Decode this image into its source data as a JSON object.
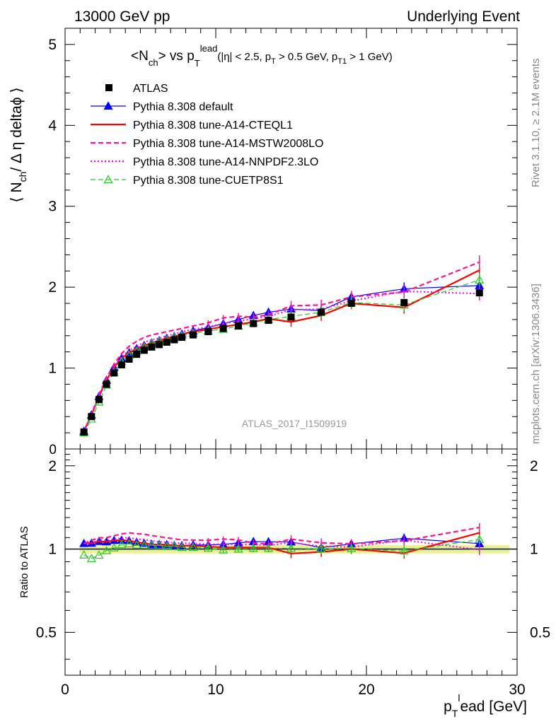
{
  "header": {
    "left": "13000 GeV pp",
    "right": "Underlying Event"
  },
  "side_labels": {
    "rivet": "Rivet 3.1.10, ≥ 2.1M events",
    "mcplots": "mcplots.cern.ch [arXiv:1306.3436]"
  },
  "watermark": "ATLAS_2017_I1509919",
  "colors": {
    "atlas": "#000000",
    "default": "#0000ff",
    "a14cteq": "#ff0000",
    "a14mstw": "#ff1493",
    "a14nnpdf": "#ff00ff",
    "cuetp8s1": "#22cc22",
    "band_outer": "#f2f28a",
    "band_inner": "#d8f0a0"
  },
  "chart_data": {
    "type": "line",
    "title": "<N_ch> vs p_T^lead (|η| < 2.5, p_T > 0.5 GeV, p_T1 > 1 GeV)",
    "title_parts": {
      "main": "<N",
      "sub1": "ch",
      "mid": "> vs p",
      "sub2": "T",
      "sup": "lead",
      "cut_a": "(|η| < 2.5, p",
      "cut_sub_a": "T",
      "cut_b": " > 0.5 GeV, p",
      "cut_sub_b": "T1",
      "cut_c": " > 1 GeV)"
    },
    "ylabel": "⟨ N_ch / Δη deltaϕ ⟩",
    "ylabel_parts": {
      "a": "⟨ N",
      "sub": "ch",
      "b": "/ Δ η deltaϕ ⟩"
    },
    "xlabel": "p_T^l ead [GeV]",
    "xlabel_parts": {
      "a": "p",
      "sub": "T",
      "sup": "l",
      "b": "ead [GeV]"
    },
    "ratio_ylabel": "Ratio to ATLAS",
    "xlim": [
      0,
      30
    ],
    "ylim": [
      0,
      5.2
    ],
    "ratio_ylim": [
      0.35,
      2.3
    ],
    "x_ticks": [
      "0",
      "10",
      "20",
      "30"
    ],
    "y_ticks": [
      "1",
      "2",
      "3",
      "4",
      "5"
    ],
    "ratio_ticks": [
      "0.5",
      "1",
      "2"
    ],
    "x": [
      1.25,
      1.75,
      2.25,
      2.75,
      3.25,
      3.75,
      4.25,
      4.75,
      5.25,
      5.75,
      6.25,
      6.75,
      7.25,
      7.75,
      8.5,
      9.5,
      10.5,
      11.5,
      12.5,
      13.5,
      15.0,
      17.0,
      19.0,
      22.5,
      27.5
    ],
    "series": [
      {
        "name": "ATLAS",
        "key": "atlas",
        "style": "square",
        "values": [
          0.21,
          0.4,
          0.61,
          0.8,
          0.94,
          1.04,
          1.11,
          1.17,
          1.22,
          1.26,
          1.29,
          1.32,
          1.35,
          1.38,
          1.41,
          1.45,
          1.49,
          1.52,
          1.55,
          1.59,
          1.63,
          1.69,
          1.8,
          1.81,
          1.93
        ]
      },
      {
        "name": "Pythia 8.308 default",
        "key": "default",
        "style": "line-triangle",
        "values": [
          0.22,
          0.42,
          0.65,
          0.85,
          1.01,
          1.12,
          1.19,
          1.24,
          1.28,
          1.31,
          1.34,
          1.37,
          1.39,
          1.42,
          1.46,
          1.5,
          1.55,
          1.6,
          1.65,
          1.69,
          1.73,
          1.71,
          1.88,
          1.98,
          2.02
        ]
      },
      {
        "name": "Pythia 8.308 tune-A14-CTEQL1",
        "key": "a14cteq",
        "style": "solid",
        "values": [
          0.22,
          0.42,
          0.65,
          0.85,
          1.01,
          1.12,
          1.19,
          1.24,
          1.28,
          1.31,
          1.34,
          1.37,
          1.39,
          1.42,
          1.45,
          1.48,
          1.51,
          1.54,
          1.57,
          1.61,
          1.57,
          1.65,
          1.8,
          1.75,
          2.21
        ]
      },
      {
        "name": "Pythia 8.308 tune-A14-MSTW2008LO",
        "key": "a14mstw",
        "style": "dashed",
        "values": [
          0.22,
          0.43,
          0.67,
          0.88,
          1.05,
          1.18,
          1.27,
          1.33,
          1.38,
          1.41,
          1.43,
          1.45,
          1.47,
          1.49,
          1.52,
          1.56,
          1.62,
          1.64,
          1.63,
          1.66,
          1.77,
          1.78,
          1.88,
          1.94,
          2.31
        ]
      },
      {
        "name": "Pythia 8.308 tune-A14-NNPDF2.3LO",
        "key": "a14nnpdf",
        "style": "dotted",
        "values": [
          0.22,
          0.42,
          0.66,
          0.86,
          1.02,
          1.14,
          1.22,
          1.27,
          1.32,
          1.35,
          1.37,
          1.4,
          1.42,
          1.45,
          1.48,
          1.51,
          1.55,
          1.58,
          1.61,
          1.64,
          1.72,
          1.73,
          1.83,
          1.95,
          1.92
        ]
      },
      {
        "name": "Pythia 8.308 tune-CUETP8S1",
        "key": "cuetp8s1",
        "style": "dashed-open-triangle",
        "values": [
          0.2,
          0.37,
          0.58,
          0.79,
          0.95,
          1.08,
          1.16,
          1.21,
          1.26,
          1.3,
          1.33,
          1.35,
          1.38,
          1.4,
          1.43,
          1.46,
          1.48,
          1.52,
          1.56,
          1.6,
          1.64,
          1.69,
          1.81,
          1.78,
          2.09
        ]
      }
    ],
    "grid": false,
    "legend_position": "top-left"
  }
}
